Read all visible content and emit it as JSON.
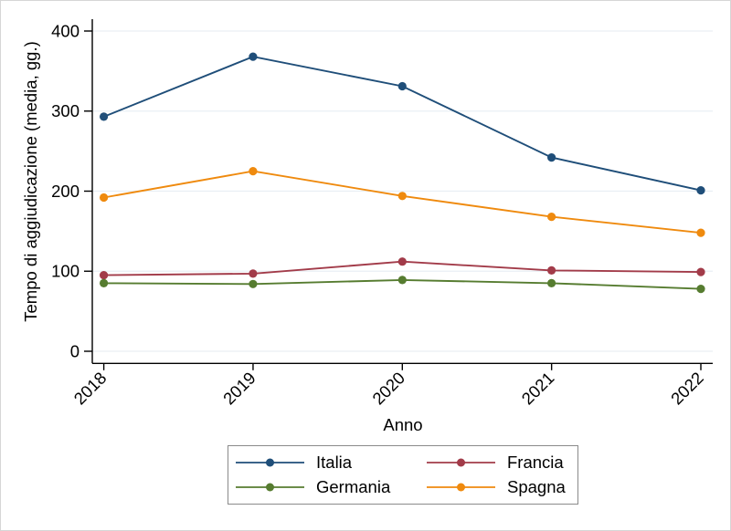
{
  "figure": {
    "background": "#ffffff",
    "border_color": "#d6d6d6",
    "text_color": "#000000"
  },
  "chart_data": {
    "type": "line",
    "xlabel": "Anno",
    "ylabel": "Tempo di aggiudicazione (media, gg.)",
    "x": [
      "2018",
      "2019",
      "2020",
      "2021",
      "2022"
    ],
    "ylim": [
      0,
      400
    ],
    "yticks": [
      0,
      100,
      200,
      300,
      400
    ],
    "grid": "horizontal",
    "gridline_color": "#e9eff4",
    "axis_color": "#000000",
    "legend_position": "bottom-center-boxed",
    "legend_columns": 2,
    "series": [
      {
        "name": "Italia",
        "color": "#1f4e79",
        "values": [
          293,
          368,
          331,
          242,
          201
        ]
      },
      {
        "name": "Francia",
        "color": "#a23b49",
        "values": [
          95,
          97,
          112,
          101,
          99
        ]
      },
      {
        "name": "Germania",
        "color": "#567c30",
        "values": [
          85,
          84,
          89,
          85,
          78
        ]
      },
      {
        "name": "Spagna",
        "color": "#ef8a0e",
        "values": [
          192,
          225,
          194,
          168,
          148
        ]
      }
    ]
  }
}
